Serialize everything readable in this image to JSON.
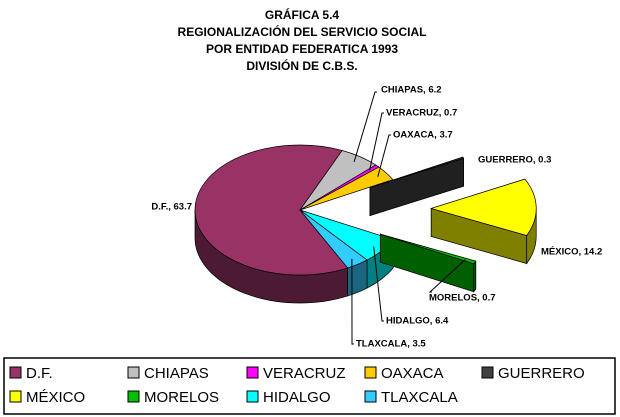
{
  "chart_data": {
    "type": "pie3d",
    "title": "GRÁFICA 5.4",
    "subtitle": [
      "REGIONALIZACIÓN DEL SERVICIO SOCIAL",
      "POR ENTIDAD FEDERATICA 1993",
      "DIVISIÓN DE C.B.S."
    ],
    "categories": [
      "D.F.",
      "CHIAPAS",
      "VERACRUZ",
      "OAXACA",
      "GUERRERO",
      "MÉXICO",
      "MORELOS",
      "HIDALGO",
      "TLAXCALA"
    ],
    "values": [
      63.7,
      6.2,
      0.7,
      3.7,
      0.3,
      14.2,
      0.7,
      6.4,
      3.5
    ],
    "value_labels": [
      "D.F., 63.7",
      "CHIAPAS, 6.2",
      "VERACRUZ, 0.7",
      "OAXACA, 3.7",
      "GUERRERO, 0.3",
      "MÉXICO, 14.2",
      "MORELOS, 0.7",
      "HIDALGO, 6.4",
      "TLAXCALA, 3.5"
    ],
    "colors": [
      "#993366",
      "#c0c0c0",
      "#ff00ff",
      "#ffcc00",
      "#404040",
      "#ffff00",
      "#00c000",
      "#00ffff",
      "#33ccff"
    ]
  }
}
